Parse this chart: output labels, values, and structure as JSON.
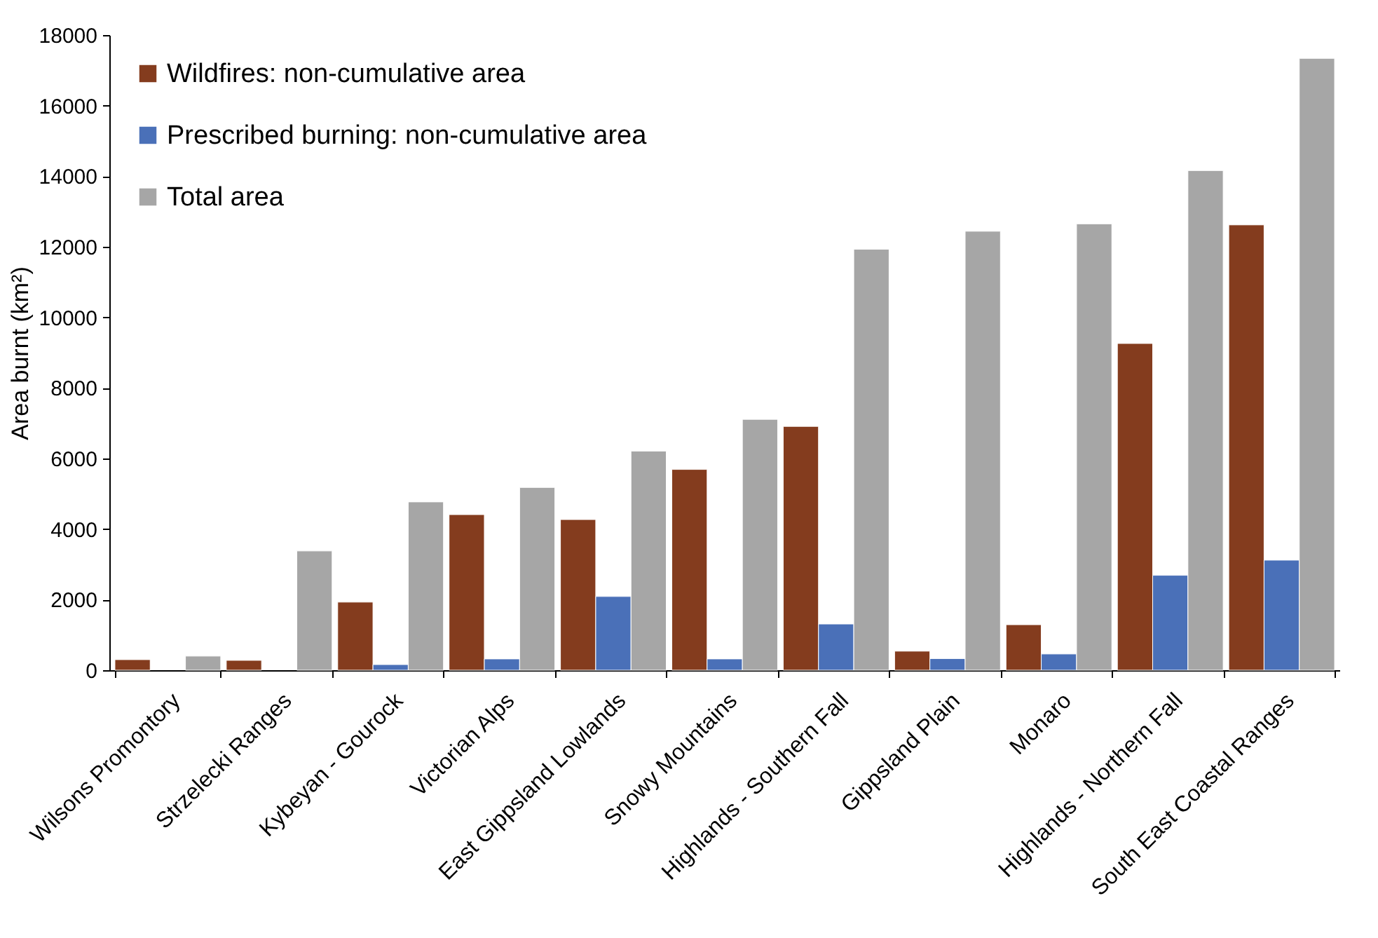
{
  "chart_data": {
    "type": "bar",
    "ylabel": "Area burnt (km²)",
    "categories": [
      "Wilsons Promontory",
      "Strzelecki Ranges",
      "Kybeyan - Gourock",
      "Victorian Alps",
      "East Gippsland Lowlands",
      "Snowy Mountains",
      "Highlands - Southern Fall",
      "Gippsland Plain",
      "Monaro",
      "Highlands - Northern Fall",
      "South East Coastal Ranges"
    ],
    "series": [
      {
        "name": "Wildfires:  non-cumulative area",
        "color": "#843c1e",
        "values": [
          300,
          280,
          1930,
          4410,
          4270,
          5690,
          6910,
          540,
          1290,
          9260,
          12620
        ]
      },
      {
        "name": "Prescribed burning:   non-cumulative area",
        "color": "#4a70b8",
        "values": [
          null,
          null,
          160,
          320,
          2090,
          320,
          1310,
          330,
          460,
          2690,
          3120
        ]
      },
      {
        "name": "Total area",
        "color": "#a6a6a6",
        "values": [
          400,
          3380,
          4770,
          5180,
          6210,
          7110,
          11930,
          12440,
          12650,
          14160,
          17340
        ]
      }
    ],
    "ylim": [
      0,
      18000
    ],
    "yticks": [
      0,
      2000,
      4000,
      6000,
      8000,
      10000,
      12000,
      14000,
      16000,
      18000
    ],
    "grid": false,
    "legend": "top left"
  }
}
